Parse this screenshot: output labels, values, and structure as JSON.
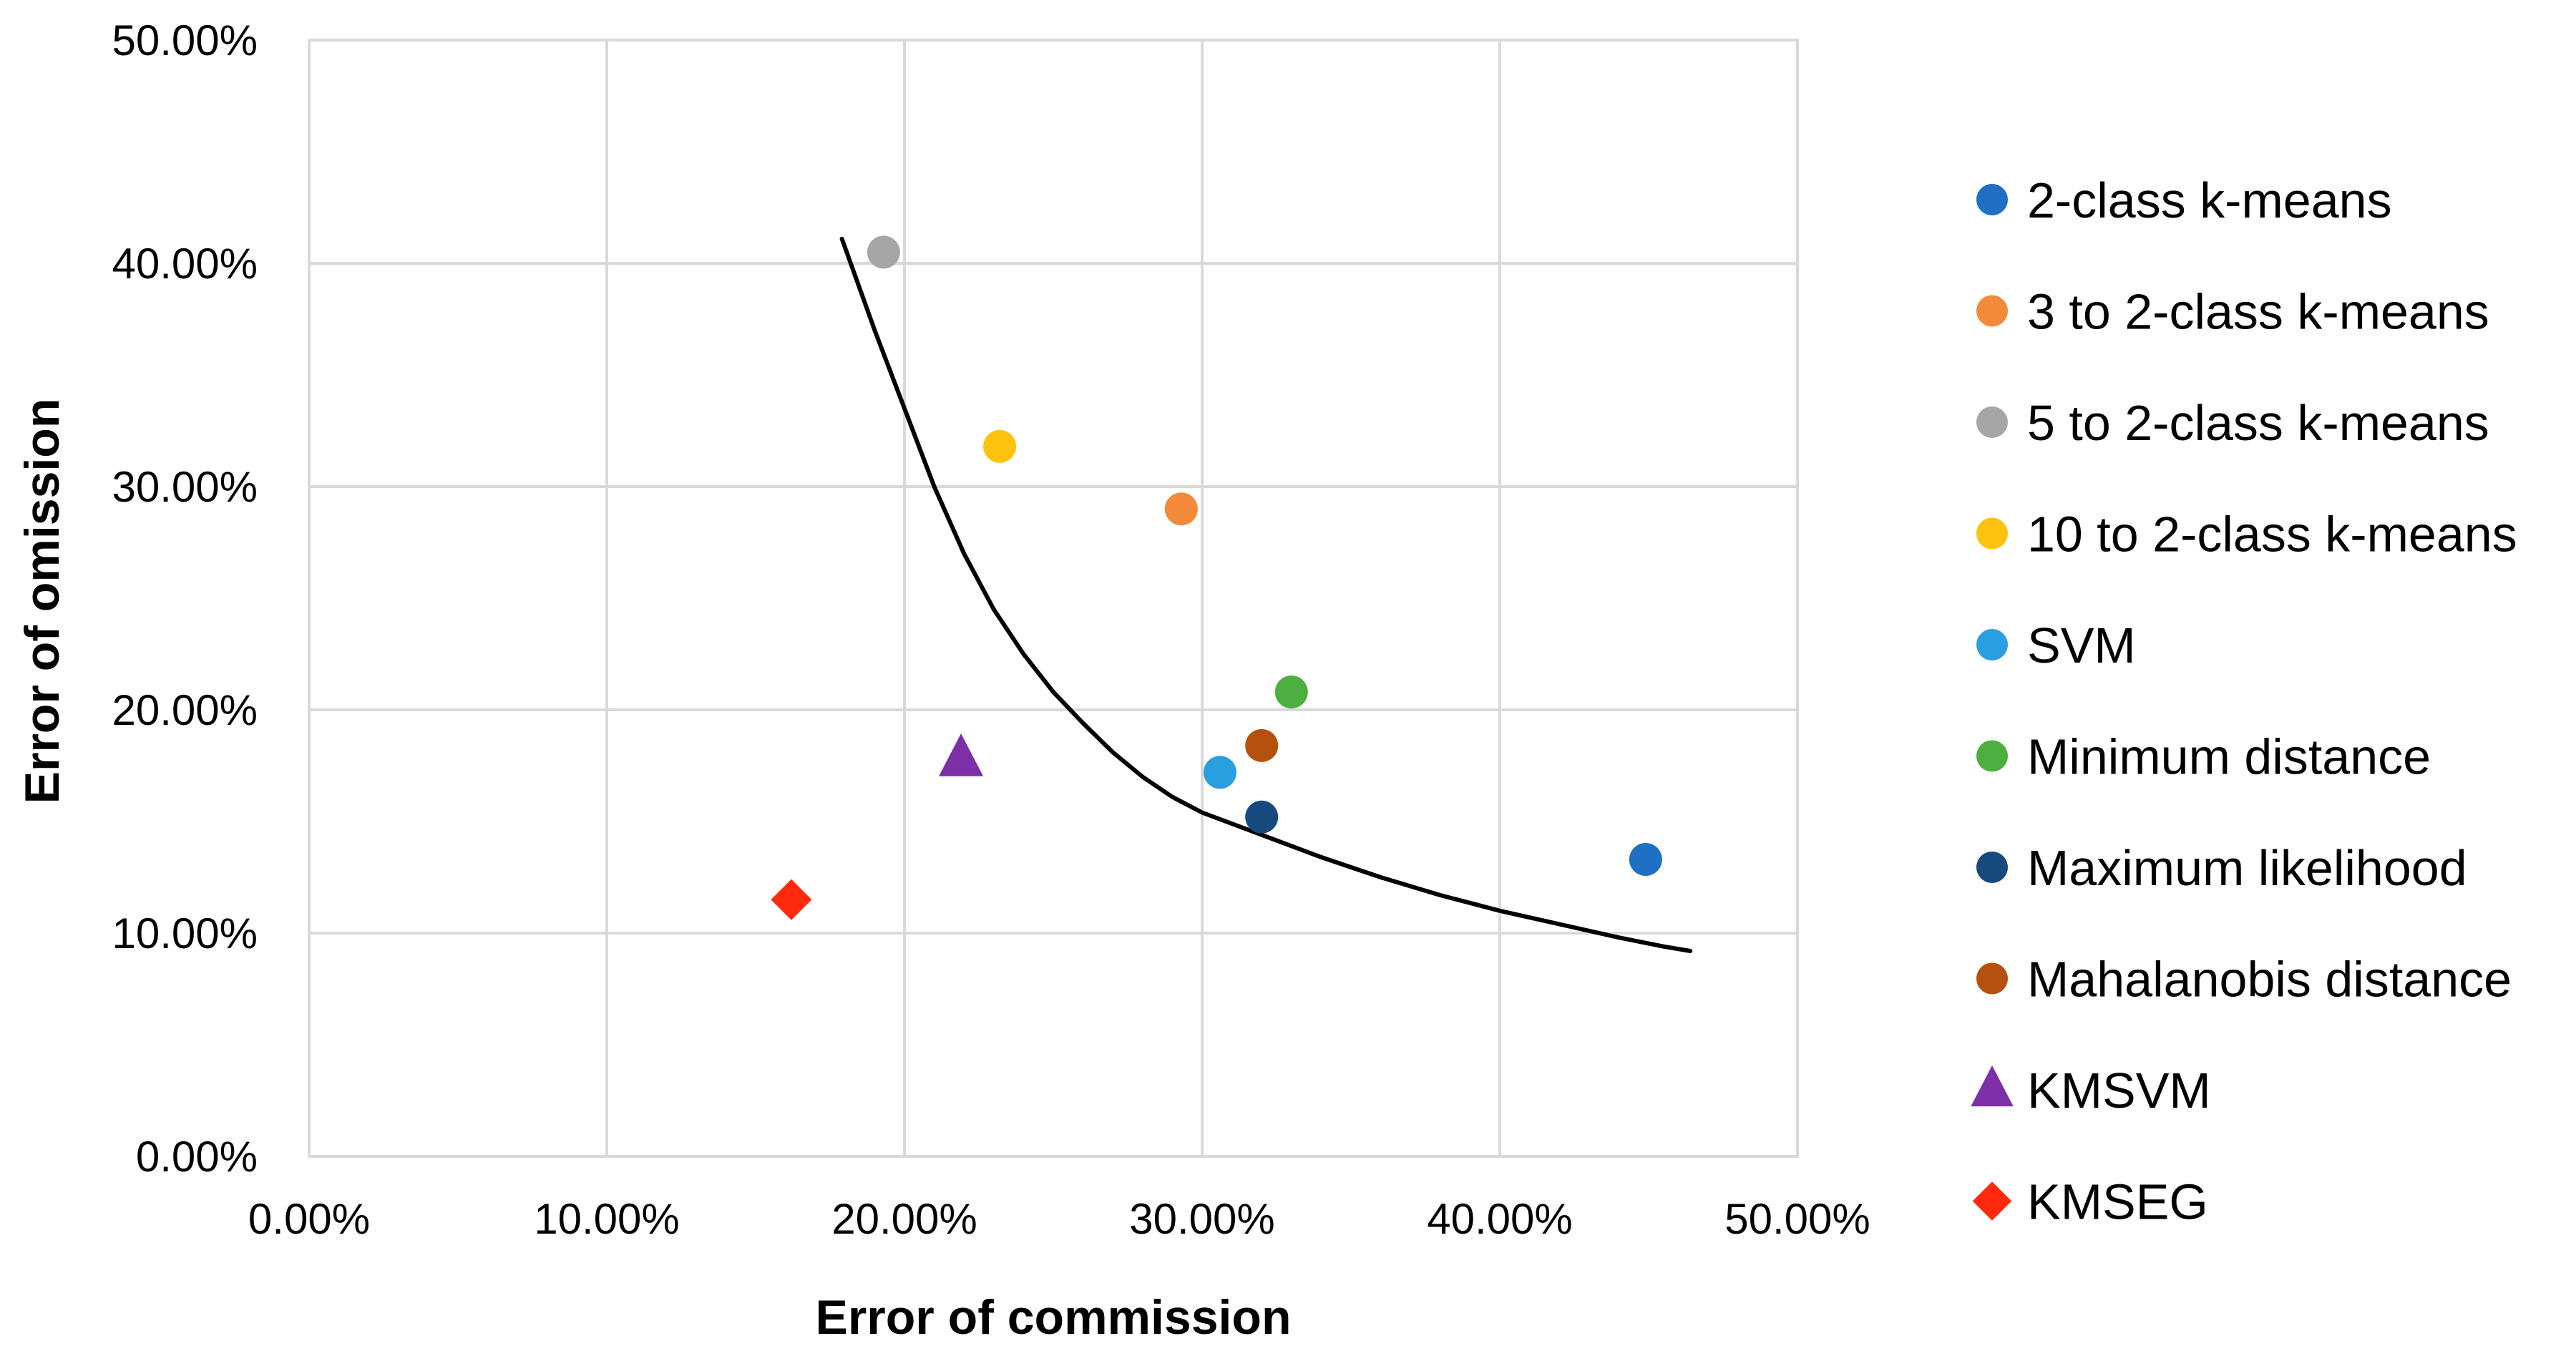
{
  "chart_data": {
    "type": "scatter",
    "title": "",
    "xlabel": "Error of commission",
    "ylabel": "Error of omission",
    "xlim": [
      0,
      0.5
    ],
    "ylim": [
      0,
      0.5
    ],
    "grid": true,
    "legend_position": "right",
    "x_ticks": [
      {
        "value": 0.0,
        "label": "0.00%"
      },
      {
        "value": 0.1,
        "label": "10.00%"
      },
      {
        "value": 0.2,
        "label": "20.00%"
      },
      {
        "value": 0.3,
        "label": "30.00%"
      },
      {
        "value": 0.4,
        "label": "40.00%"
      },
      {
        "value": 0.5,
        "label": "50.00%"
      }
    ],
    "y_ticks": [
      {
        "value": 0.0,
        "label": "0.00%"
      },
      {
        "value": 0.1,
        "label": "10.00%"
      },
      {
        "value": 0.2,
        "label": "20.00%"
      },
      {
        "value": 0.3,
        "label": "30.00%"
      },
      {
        "value": 0.4,
        "label": "40.00%"
      },
      {
        "value": 0.5,
        "label": "50.00%"
      }
    ],
    "series": [
      {
        "name": "2-class k-means",
        "marker": "circle",
        "color": "#1f6fc5",
        "x": 0.449,
        "y": 0.133
      },
      {
        "name": "3 to 2-class k-means",
        "marker": "circle",
        "color": "#f28a3a",
        "x": 0.293,
        "y": 0.29
      },
      {
        "name": "5 to 2-class k-means",
        "marker": "circle",
        "color": "#a6a6a6",
        "x": 0.193,
        "y": 0.405
      },
      {
        "name": "10 to 2-class k-means",
        "marker": "circle",
        "color": "#ffc20e",
        "x": 0.232,
        "y": 0.318
      },
      {
        "name": "SVM",
        "marker": "circle",
        "color": "#2a9fdf",
        "x": 0.306,
        "y": 0.172
      },
      {
        "name": "Minimum distance",
        "marker": "circle",
        "color": "#4caf3f",
        "x": 0.33,
        "y": 0.208
      },
      {
        "name": "Maximum likelihood",
        "marker": "circle",
        "color": "#164a7e",
        "x": 0.32,
        "y": 0.152
      },
      {
        "name": "Mahalanobis distance",
        "marker": "circle",
        "color": "#b5500f",
        "x": 0.32,
        "y": 0.184
      },
      {
        "name": "KMSVM",
        "marker": "triangle",
        "color": "#7c2fa6",
        "x": 0.219,
        "y": 0.178
      },
      {
        "name": "KMSEG",
        "marker": "diamond",
        "color": "#ff2a0e",
        "x": 0.162,
        "y": 0.115
      }
    ],
    "trend_line": {
      "color": "#000000",
      "points": [
        [
          0.179,
          0.411
        ],
        [
          0.19,
          0.37
        ],
        [
          0.2,
          0.335
        ],
        [
          0.21,
          0.3
        ],
        [
          0.22,
          0.27
        ],
        [
          0.23,
          0.245
        ],
        [
          0.24,
          0.225
        ],
        [
          0.25,
          0.208
        ],
        [
          0.26,
          0.194
        ],
        [
          0.27,
          0.181
        ],
        [
          0.28,
          0.17
        ],
        [
          0.29,
          0.161
        ],
        [
          0.3,
          0.154
        ],
        [
          0.32,
          0.144
        ],
        [
          0.34,
          0.134
        ],
        [
          0.36,
          0.125
        ],
        [
          0.38,
          0.117
        ],
        [
          0.4,
          0.11
        ],
        [
          0.42,
          0.104
        ],
        [
          0.44,
          0.098
        ],
        [
          0.455,
          0.094
        ],
        [
          0.464,
          0.092
        ]
      ]
    }
  }
}
